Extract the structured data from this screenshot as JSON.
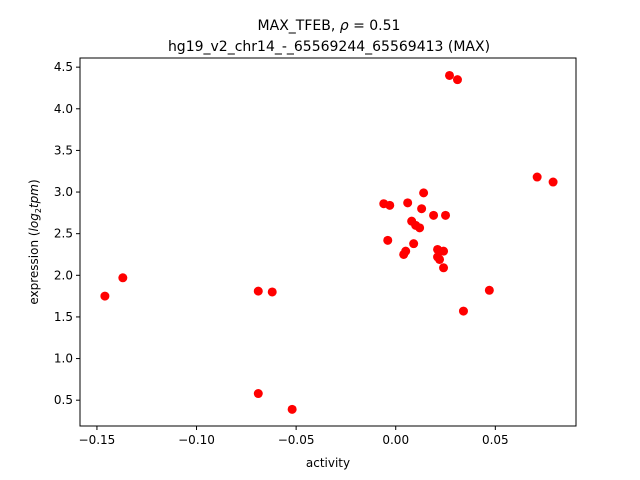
{
  "chart_data": {
    "type": "scatter",
    "title_line1_prefix": "MAX_TFEB, ",
    "title_line1_rho": "ρ",
    "title_line1_eq": " = 0.51",
    "title_line2": "hg19_v2_chr14_-_65569244_65569413 (MAX)",
    "xlabel": "activity",
    "ylabel_prefix": "expression (",
    "ylabel_math": "log",
    "ylabel_sub": "2",
    "ylabel_math2": "tpm",
    "ylabel_suffix": ")",
    "xlim": [
      -0.1585,
      0.0905
    ],
    "ylim": [
      0.19,
      4.61
    ],
    "xticks": [
      -0.15,
      -0.1,
      -0.05,
      0.0,
      0.05
    ],
    "xtick_labels": [
      "−0.15",
      "−0.10",
      "−0.05",
      "0.00",
      "0.05"
    ],
    "yticks": [
      0.5,
      1.0,
      1.5,
      2.0,
      2.5,
      3.0,
      3.5,
      4.0,
      4.5
    ],
    "ytick_labels": [
      "0.5",
      "1.0",
      "1.5",
      "2.0",
      "2.5",
      "3.0",
      "3.5",
      "4.0",
      "4.5"
    ],
    "marker_color": "#ff0000",
    "points": [
      {
        "x": -0.146,
        "y": 1.75
      },
      {
        "x": -0.137,
        "y": 1.97
      },
      {
        "x": -0.069,
        "y": 1.81
      },
      {
        "x": -0.062,
        "y": 1.8
      },
      {
        "x": -0.069,
        "y": 0.58
      },
      {
        "x": -0.052,
        "y": 0.39
      },
      {
        "x": -0.006,
        "y": 2.86
      },
      {
        "x": -0.003,
        "y": 2.84
      },
      {
        "x": -0.004,
        "y": 2.42
      },
      {
        "x": 0.004,
        "y": 2.25
      },
      {
        "x": 0.005,
        "y": 2.29
      },
      {
        "x": 0.006,
        "y": 2.87
      },
      {
        "x": 0.008,
        "y": 2.65
      },
      {
        "x": 0.009,
        "y": 2.38
      },
      {
        "x": 0.01,
        "y": 2.6
      },
      {
        "x": 0.012,
        "y": 2.57
      },
      {
        "x": 0.013,
        "y": 2.8
      },
      {
        "x": 0.014,
        "y": 2.99
      },
      {
        "x": 0.019,
        "y": 2.72
      },
      {
        "x": 0.021,
        "y": 2.31
      },
      {
        "x": 0.021,
        "y": 2.22
      },
      {
        "x": 0.022,
        "y": 2.19
      },
      {
        "x": 0.024,
        "y": 2.29
      },
      {
        "x": 0.024,
        "y": 2.09
      },
      {
        "x": 0.025,
        "y": 2.72
      },
      {
        "x": 0.027,
        "y": 4.4
      },
      {
        "x": 0.031,
        "y": 4.35
      },
      {
        "x": 0.034,
        "y": 1.57
      },
      {
        "x": 0.047,
        "y": 1.82
      },
      {
        "x": 0.071,
        "y": 3.18
      },
      {
        "x": 0.079,
        "y": 3.12
      }
    ]
  }
}
